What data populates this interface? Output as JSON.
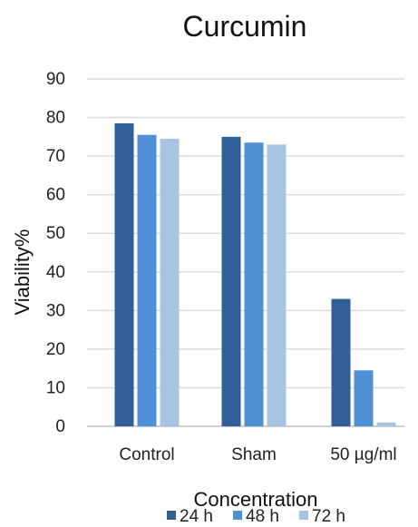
{
  "chart_data": {
    "type": "bar",
    "title": "Curcumin",
    "xlabel": "Concentration",
    "ylabel": "Viability%",
    "categories": [
      "Control",
      "Sham",
      "50 µg/ml"
    ],
    "series": [
      {
        "name": "24 h",
        "values": [
          78.5,
          75,
          33
        ],
        "color": "#2f5f96"
      },
      {
        "name": "48 h",
        "values": [
          75.5,
          73.5,
          14.5
        ],
        "color": "#4f8fd6"
      },
      {
        "name": "72 h",
        "values": [
          74.5,
          73,
          1
        ],
        "color": "#a9c3e2"
      }
    ],
    "ylim": [
      0,
      90
    ],
    "yticks": [
      0,
      10,
      20,
      30,
      40,
      50,
      60,
      70,
      80,
      90
    ],
    "grid": true,
    "legend_position": "bottom"
  }
}
